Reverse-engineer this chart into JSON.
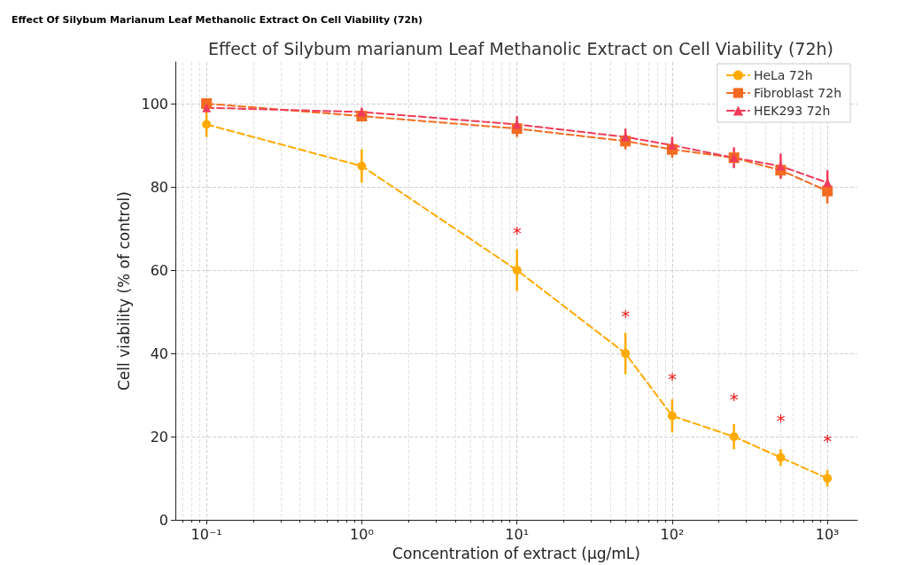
{
  "chart_data": {
    "type": "line",
    "subtitle": "Effect Of Silybum Marianum Leaf Methanolic Extract On Cell Viability (72h)",
    "title": "Effect of Silybum marianum Leaf Methanolic Extract on Cell Viability (72h)",
    "xlabel": "Concentration of extract (µg/mL)",
    "ylabel": "Cell viability (% of control)",
    "x": [
      0.1,
      1,
      10,
      50,
      100,
      250,
      500,
      1000
    ],
    "series": [
      {
        "name": "HeLa 72h",
        "color": "#ffaa00",
        "marker": "circle",
        "values": [
          95,
          85,
          60,
          40,
          25,
          20,
          15,
          10
        ],
        "errors": [
          3,
          4,
          5,
          5,
          4,
          3,
          2,
          2
        ]
      },
      {
        "name": "Fibroblast 72h",
        "color": "#f26b21",
        "marker": "square",
        "values": [
          100,
          97,
          94,
          91,
          89,
          87,
          84,
          79
        ],
        "errors": [
          1,
          1,
          2,
          2,
          2,
          null,
          2,
          3
        ]
      },
      {
        "name": "HEK293 72h",
        "color": "#f03c5a",
        "marker": "triangle",
        "values": [
          99,
          98,
          95,
          92,
          90,
          87,
          85,
          81
        ],
        "errors": [
          1,
          1,
          2,
          2,
          2,
          2.5,
          3,
          3
        ]
      }
    ],
    "line_style": "dashed",
    "log": "x",
    "grid": true,
    "legend": "top right",
    "xlim": [
      0.063,
      1560
    ],
    "ylim": [
      0,
      110
    ],
    "xticks": [
      {
        "value": 0.1,
        "label": "10⁻¹"
      },
      {
        "value": 1,
        "label": "10⁰"
      },
      {
        "value": 10,
        "label": "10¹"
      },
      {
        "value": 100,
        "label": "10²"
      },
      {
        "value": 1000,
        "label": "10³"
      }
    ],
    "yticks": [
      0,
      20,
      40,
      60,
      80,
      100
    ],
    "annotations": [
      {
        "text": "*",
        "x": 10,
        "y": 60
      },
      {
        "text": "*",
        "x": 50,
        "y": 40
      },
      {
        "text": "*",
        "x": 100,
        "y": 25
      },
      {
        "text": "*",
        "x": 250,
        "y": 20
      },
      {
        "text": "*",
        "x": 500,
        "y": 15
      },
      {
        "text": "*",
        "x": 1000,
        "y": 10
      }
    ]
  }
}
